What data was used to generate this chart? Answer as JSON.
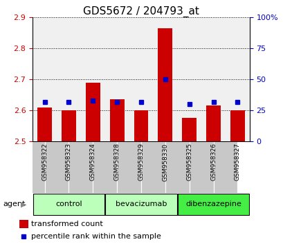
{
  "title": "GDS5672 / 204793_at",
  "categories": [
    "GSM958322",
    "GSM958323",
    "GSM958324",
    "GSM958328",
    "GSM958329",
    "GSM958330",
    "GSM958325",
    "GSM958326",
    "GSM958327"
  ],
  "red_values": [
    2.61,
    2.6,
    2.69,
    2.635,
    2.6,
    2.865,
    2.575,
    2.615,
    2.6
  ],
  "blue_values": [
    32,
    32,
    33,
    32,
    32,
    50,
    30,
    32,
    32
  ],
  "ylim_left": [
    2.5,
    2.9
  ],
  "ylim_right": [
    0,
    100
  ],
  "yticks_left": [
    2.5,
    2.6,
    2.7,
    2.8,
    2.9
  ],
  "yticks_right": [
    0,
    25,
    50,
    75,
    100
  ],
  "ytick_labels_right": [
    "0",
    "25",
    "50",
    "75",
    "100%"
  ],
  "group_positions": [
    {
      "label": "control",
      "start": 0,
      "end": 2,
      "color": "#bbffbb"
    },
    {
      "label": "bevacizumab",
      "start": 3,
      "end": 5,
      "color": "#bbffbb"
    },
    {
      "label": "dibenzazepine",
      "start": 6,
      "end": 8,
      "color": "#44ee44"
    }
  ],
  "bar_color": "#cc0000",
  "dot_color": "#0000cc",
  "bar_width": 0.6,
  "legend_red": "transformed count",
  "legend_blue": "percentile rank within the sample",
  "background_color": "#ffffff",
  "label_bg": "#c8c8c8",
  "tick_color_left": "#cc0000",
  "tick_color_right": "#0000cc",
  "title_fontsize": 11,
  "tick_fontsize": 8,
  "label_fontsize": 6.5,
  "group_fontsize": 8,
  "legend_fontsize": 8,
  "agent_fontsize": 8
}
